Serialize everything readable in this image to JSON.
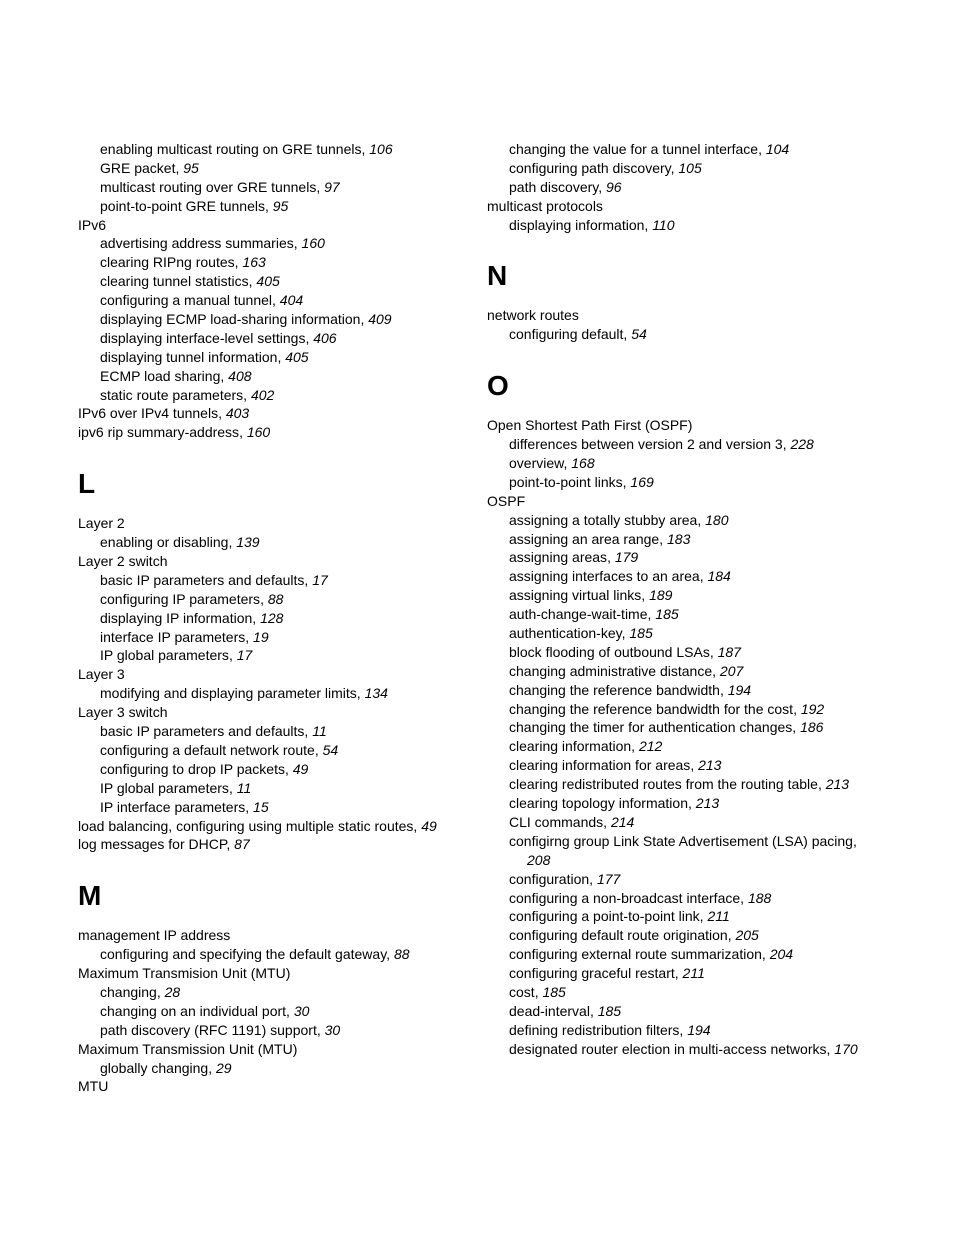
{
  "left_column": [
    {
      "type": "entry",
      "level": 1,
      "text": "enabling multicast routing on GRE tunnels",
      "page": "106"
    },
    {
      "type": "entry",
      "level": 1,
      "text": "GRE packet",
      "page": "95"
    },
    {
      "type": "entry",
      "level": 1,
      "text": "multicast routing over GRE tunnels",
      "page": "97"
    },
    {
      "type": "entry",
      "level": 1,
      "text": "point-to-point GRE tunnels",
      "page": "95"
    },
    {
      "type": "entry",
      "level": 0,
      "text": "IPv6",
      "page": null
    },
    {
      "type": "entry",
      "level": 1,
      "text": "advertising address summaries",
      "page": "160"
    },
    {
      "type": "entry",
      "level": 1,
      "text": "clearing RIPng routes",
      "page": "163"
    },
    {
      "type": "entry",
      "level": 1,
      "text": "clearing tunnel statistics",
      "page": "405"
    },
    {
      "type": "entry",
      "level": 1,
      "text": "configuring a manual tunnel",
      "page": "404"
    },
    {
      "type": "entry",
      "level": 1,
      "text": "displaying ECMP load-sharing information",
      "page": "409"
    },
    {
      "type": "entry",
      "level": 1,
      "text": "displaying interface-level settings",
      "page": "406"
    },
    {
      "type": "entry",
      "level": 1,
      "text": "displaying tunnel information",
      "page": "405"
    },
    {
      "type": "entry",
      "level": 1,
      "text": "ECMP load sharing",
      "page": "408"
    },
    {
      "type": "entry",
      "level": 1,
      "text": "static route parameters",
      "page": "402"
    },
    {
      "type": "entry",
      "level": 0,
      "text": "IPv6 over IPv4 tunnels",
      "page": "403"
    },
    {
      "type": "entry",
      "level": 0,
      "text": "ipv6 rip summary-address",
      "page": "160"
    },
    {
      "type": "letter",
      "text": "L"
    },
    {
      "type": "entry",
      "level": 0,
      "text": "Layer 2",
      "page": null
    },
    {
      "type": "entry",
      "level": 1,
      "text": "enabling or disabling",
      "page": "139"
    },
    {
      "type": "entry",
      "level": 0,
      "text": "Layer 2 switch",
      "page": null
    },
    {
      "type": "entry",
      "level": 1,
      "text": "basic IP parameters and defaults",
      "page": "17"
    },
    {
      "type": "entry",
      "level": 1,
      "text": "configuring IP parameters",
      "page": "88"
    },
    {
      "type": "entry",
      "level": 1,
      "text": "displaying IP information",
      "page": "128"
    },
    {
      "type": "entry",
      "level": 1,
      "text": "interface IP parameters",
      "page": "19"
    },
    {
      "type": "entry",
      "level": 1,
      "text": "IP global parameters",
      "page": "17"
    },
    {
      "type": "entry",
      "level": 0,
      "text": "Layer 3",
      "page": null
    },
    {
      "type": "entry",
      "level": 1,
      "text": "modifying and displaying parameter limits",
      "page": "134"
    },
    {
      "type": "entry",
      "level": 0,
      "text": "Layer 3 switch",
      "page": null
    },
    {
      "type": "entry",
      "level": 1,
      "text": "basic IP parameters and defaults",
      "page": "11"
    },
    {
      "type": "entry",
      "level": 1,
      "text": "configuring a default network route",
      "page": "54"
    },
    {
      "type": "entry",
      "level": 1,
      "text": "configuring to drop IP packets",
      "page": "49"
    },
    {
      "type": "entry",
      "level": 1,
      "text": "IP global parameters",
      "page": "11"
    },
    {
      "type": "entry",
      "level": 1,
      "text": "IP interface parameters",
      "page": "15"
    },
    {
      "type": "entry",
      "level": 0,
      "text": "load balancing, configuring using multiple static routes",
      "page": "49"
    },
    {
      "type": "entry",
      "level": 0,
      "text": "log messages for DHCP",
      "page": "87"
    },
    {
      "type": "letter",
      "text": "M"
    },
    {
      "type": "entry",
      "level": 0,
      "text": "management IP address",
      "page": null
    },
    {
      "type": "entry",
      "level": 1,
      "text": "configuring and specifying the default gateway",
      "page": "88"
    },
    {
      "type": "entry",
      "level": 0,
      "text": "Maximum Transmision Unit (MTU)",
      "page": null
    },
    {
      "type": "entry",
      "level": 1,
      "text": "changing",
      "page": "28"
    },
    {
      "type": "entry",
      "level": 1,
      "text": "changing on an individual port",
      "page": "30"
    },
    {
      "type": "entry",
      "level": 1,
      "text": "path discovery (RFC 1191) support",
      "page": "30"
    },
    {
      "type": "entry",
      "level": 0,
      "text": "Maximum Transmission Unit (MTU)",
      "page": null
    },
    {
      "type": "entry",
      "level": 1,
      "text": "globally changing",
      "page": "29"
    },
    {
      "type": "entry",
      "level": 0,
      "text": "MTU",
      "page": null
    }
  ],
  "right_column": [
    {
      "type": "entry",
      "level": 1,
      "text": "changing the value for a tunnel interface",
      "page": "104"
    },
    {
      "type": "entry",
      "level": 1,
      "text": "configuring path discovery",
      "page": "105"
    },
    {
      "type": "entry",
      "level": 1,
      "text": "path discovery",
      "page": "96"
    },
    {
      "type": "entry",
      "level": 0,
      "text": "multicast protocols",
      "page": null
    },
    {
      "type": "entry",
      "level": 1,
      "text": "displaying information",
      "page": "110"
    },
    {
      "type": "letter",
      "text": "N"
    },
    {
      "type": "entry",
      "level": 0,
      "text": "network routes",
      "page": null
    },
    {
      "type": "entry",
      "level": 1,
      "text": "configuring default",
      "page": "54"
    },
    {
      "type": "letter",
      "text": "O"
    },
    {
      "type": "entry",
      "level": 0,
      "text": "Open Shortest Path First (OSPF)",
      "page": null
    },
    {
      "type": "entry",
      "level": 1,
      "text": "differences between version 2 and version 3",
      "page": "228"
    },
    {
      "type": "entry",
      "level": 1,
      "text": "overview",
      "page": "168"
    },
    {
      "type": "entry",
      "level": 1,
      "text": "point-to-point links",
      "page": "169"
    },
    {
      "type": "entry",
      "level": 0,
      "text": "OSPF",
      "page": null
    },
    {
      "type": "entry",
      "level": 1,
      "text": "assigning a totally stubby area",
      "page": "180"
    },
    {
      "type": "entry",
      "level": 1,
      "text": "assigning an area range",
      "page": "183"
    },
    {
      "type": "entry",
      "level": 1,
      "text": "assigning areas",
      "page": "179"
    },
    {
      "type": "entry",
      "level": 1,
      "text": "assigning interfaces to an area",
      "page": "184"
    },
    {
      "type": "entry",
      "level": 1,
      "text": "assigning virtual links",
      "page": "189"
    },
    {
      "type": "entry",
      "level": 1,
      "text": "auth-change-wait-time",
      "page": "185"
    },
    {
      "type": "entry",
      "level": 1,
      "text": "authentication-key",
      "page": "185"
    },
    {
      "type": "entry",
      "level": 1,
      "text": "block flooding of outbound LSAs",
      "page": "187"
    },
    {
      "type": "entry",
      "level": 1,
      "text": "changing administrative distance",
      "page": "207"
    },
    {
      "type": "entry",
      "level": 1,
      "text": "changing the reference bandwidth",
      "page": "194"
    },
    {
      "type": "entry",
      "level": 1,
      "text": "changing the reference bandwidth for the cost",
      "page": "192"
    },
    {
      "type": "entry",
      "level": 1,
      "text": "changing the timer for authentication changes",
      "page": "186"
    },
    {
      "type": "entry",
      "level": 1,
      "text": "clearing information",
      "page": "212"
    },
    {
      "type": "entry",
      "level": 1,
      "text": "clearing information for areas",
      "page": "213"
    },
    {
      "type": "entry",
      "level": 1,
      "text": "clearing redistributed routes from the routing table",
      "page": "213"
    },
    {
      "type": "entry",
      "level": 1,
      "text": "clearing topology information",
      "page": "213"
    },
    {
      "type": "entry",
      "level": 1,
      "text": "CLI commands",
      "page": "214"
    },
    {
      "type": "entry",
      "level": 1,
      "text": "configirng group Link State Advertisement (LSA) pacing",
      "page": "208"
    },
    {
      "type": "entry",
      "level": 1,
      "text": "configuration",
      "page": "177"
    },
    {
      "type": "entry",
      "level": 1,
      "text": "configuring a non-broadcast interface",
      "page": "188"
    },
    {
      "type": "entry",
      "level": 1,
      "text": "configuring a point-to-point link",
      "page": "211"
    },
    {
      "type": "entry",
      "level": 1,
      "text": "configuring default route origination",
      "page": "205"
    },
    {
      "type": "entry",
      "level": 1,
      "text": "configuring external route summarization",
      "page": "204"
    },
    {
      "type": "entry",
      "level": 1,
      "text": "configuring graceful restart",
      "page": "211"
    },
    {
      "type": "entry",
      "level": 1,
      "text": "cost",
      "page": "185"
    },
    {
      "type": "entry",
      "level": 1,
      "text": "dead-interval",
      "page": "185"
    },
    {
      "type": "entry",
      "level": 1,
      "text": "defining redistribution filters",
      "page": "194"
    },
    {
      "type": "entry",
      "level": 1,
      "text": "designated router election in multi-access networks",
      "page": "170"
    }
  ]
}
